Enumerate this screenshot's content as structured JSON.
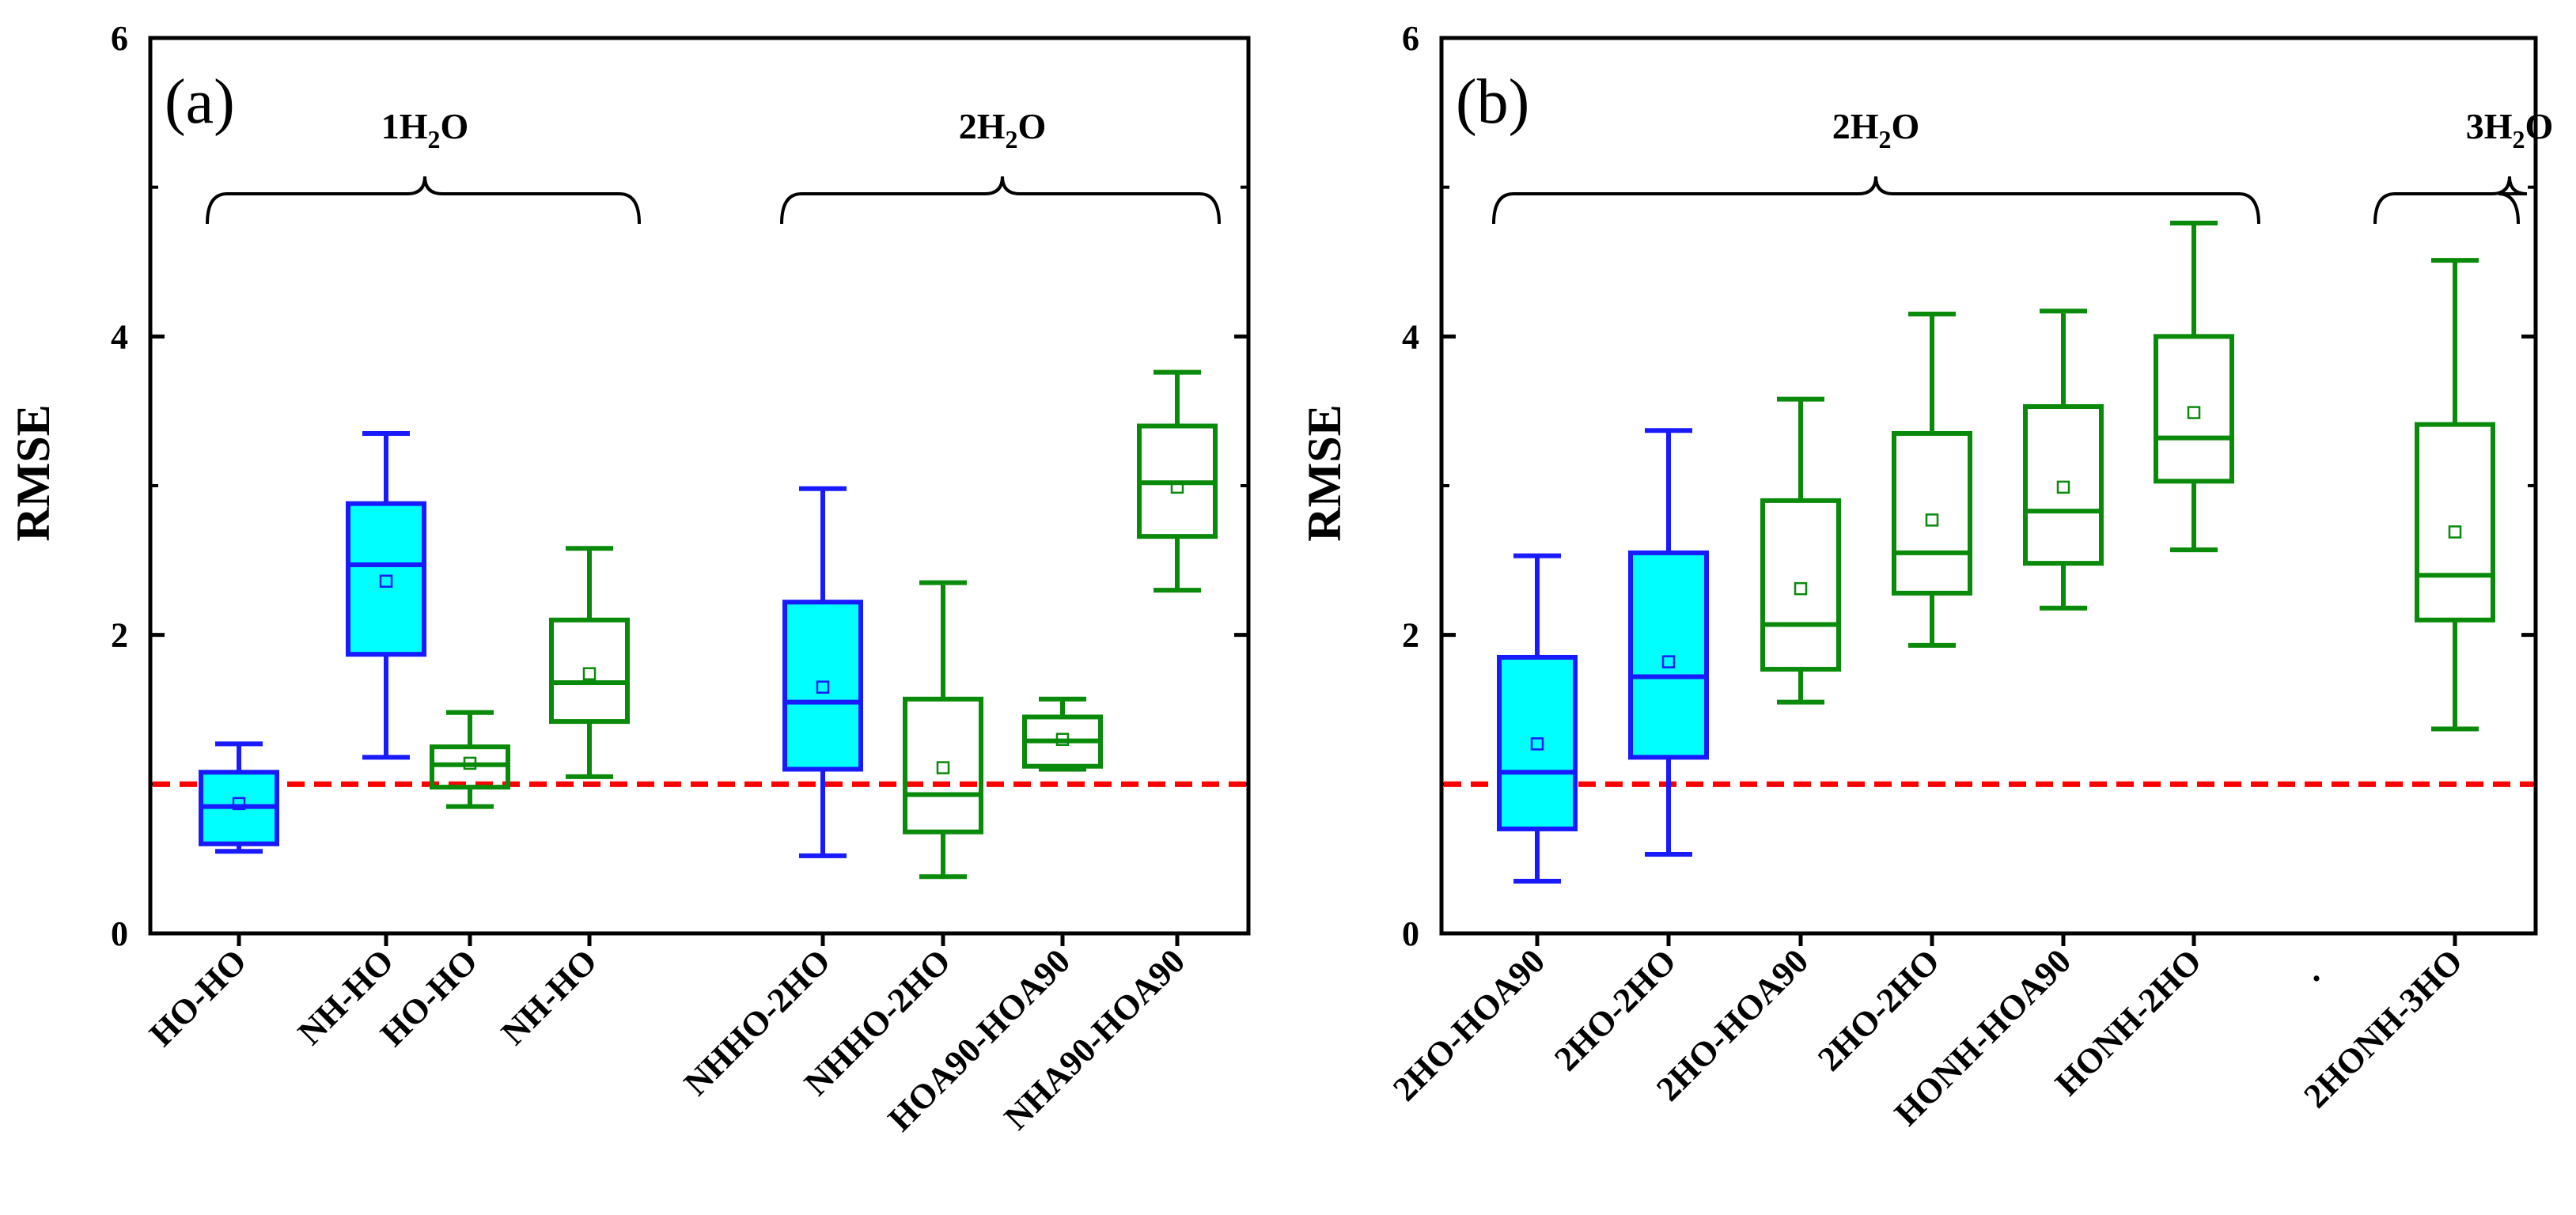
{
  "colors": {
    "blue": "#1a1aff",
    "green": "#0a8a0a",
    "cyan": "#00ffff",
    "red": "#ff0000",
    "black": "#000000"
  },
  "chart_data": [
    {
      "type": "box",
      "panel_label": "(a)",
      "ylabel": "RMSE",
      "ylim": [
        0,
        6
      ],
      "yticks": [
        "0",
        "2",
        "4",
        "6"
      ],
      "reference_line": 1,
      "groups": [
        {
          "label_main": "1H",
          "label_sub": "2",
          "label_end": "O",
          "from": 0,
          "to": 3
        },
        {
          "label_main": "2H",
          "label_sub": "2",
          "label_end": "O",
          "from": 4,
          "to": 7
        }
      ],
      "categories": [
        "HO-HO",
        "NH-HO",
        "HO-HO",
        "NH-HO",
        "NHHO-2HO",
        "NHHO-2HO",
        "HOA90-HOA90",
        "NHA90-HOA90"
      ],
      "series": [
        {
          "name": "HO-HO",
          "color": "blue",
          "fill": "cyan",
          "min": 0.55,
          "q1": 0.6,
          "median": 0.85,
          "q3": 1.08,
          "max": 1.27,
          "mean": 0.87
        },
        {
          "name": "NH-HO",
          "color": "blue",
          "fill": "cyan",
          "min": 1.18,
          "q1": 1.87,
          "median": 2.47,
          "q3": 2.88,
          "max": 3.35,
          "mean": 2.36
        },
        {
          "name": "HO-HO",
          "color": "green",
          "fill": "none",
          "min": 0.85,
          "q1": 0.98,
          "median": 1.13,
          "q3": 1.25,
          "max": 1.48,
          "mean": 1.14
        },
        {
          "name": "NH-HO",
          "color": "green",
          "fill": "none",
          "min": 1.05,
          "q1": 1.42,
          "median": 1.68,
          "q3": 2.1,
          "max": 2.58,
          "mean": 1.74
        },
        {
          "name": "NHHO-2HO",
          "color": "blue",
          "fill": "cyan",
          "min": 0.52,
          "q1": 1.1,
          "median": 1.55,
          "q3": 2.22,
          "max": 2.98,
          "mean": 1.65
        },
        {
          "name": "NHHO-2HO",
          "color": "green",
          "fill": "none",
          "min": 0.38,
          "q1": 0.68,
          "median": 0.93,
          "q3": 1.57,
          "max": 2.35,
          "mean": 1.11
        },
        {
          "name": "HOA90-HOA90",
          "color": "green",
          "fill": "none",
          "min": 1.1,
          "q1": 1.12,
          "median": 1.29,
          "q3": 1.45,
          "max": 1.57,
          "mean": 1.3
        },
        {
          "name": "NHA90-HOA90",
          "color": "green",
          "fill": "none",
          "min": 2.3,
          "q1": 2.66,
          "median": 3.02,
          "q3": 3.4,
          "max": 3.76,
          "mean": 2.99
        }
      ]
    },
    {
      "type": "box",
      "panel_label": "(b)",
      "ylabel": "RMSE",
      "ylim": [
        0,
        6
      ],
      "yticks": [
        "0",
        "2",
        "4",
        "6"
      ],
      "reference_line": 1,
      "groups": [
        {
          "label_main": "2H",
          "label_sub": "2",
          "label_end": "O",
          "from": 0,
          "to": 5
        },
        {
          "label_main": "3H",
          "label_sub": "2",
          "label_end": "O",
          "from": 7,
          "to": 7
        }
      ],
      "categories": [
        "2HO-HOA90",
        "2HO-2HO",
        "2HO-HOA90",
        "2HO-2HO",
        "HONH-HOA90",
        "HONH-2HO",
        ".",
        "2HONH-3HO"
      ],
      "series": [
        {
          "name": "2HO-HOA90",
          "color": "blue",
          "fill": "cyan",
          "min": 0.35,
          "q1": 0.7,
          "median": 1.08,
          "q3": 1.85,
          "max": 2.53,
          "mean": 1.27
        },
        {
          "name": "2HO-2HO",
          "color": "blue",
          "fill": "cyan",
          "min": 0.53,
          "q1": 1.18,
          "median": 1.72,
          "q3": 2.55,
          "max": 3.37,
          "mean": 1.82
        },
        {
          "name": "2HO-HOA90",
          "color": "green",
          "fill": "none",
          "min": 1.55,
          "q1": 1.77,
          "median": 2.07,
          "q3": 2.9,
          "max": 3.58,
          "mean": 2.31
        },
        {
          "name": "2HO-2HO",
          "color": "green",
          "fill": "none",
          "min": 1.93,
          "q1": 2.28,
          "median": 2.55,
          "q3": 3.35,
          "max": 4.15,
          "mean": 2.77
        },
        {
          "name": "HONH-HOA90",
          "color": "green",
          "fill": "none",
          "min": 2.18,
          "q1": 2.48,
          "median": 2.83,
          "q3": 3.53,
          "max": 4.17,
          "mean": 2.99
        },
        {
          "name": "HONH-2HO",
          "color": "green",
          "fill": "none",
          "min": 2.57,
          "q1": 3.03,
          "median": 3.32,
          "q3": 4.0,
          "max": 4.76,
          "mean": 3.49
        },
        null,
        {
          "name": "2HONH-3HO",
          "color": "green",
          "fill": "none",
          "min": 1.37,
          "q1": 2.1,
          "median": 2.4,
          "q3": 3.41,
          "max": 4.51,
          "mean": 2.69
        }
      ]
    }
  ]
}
